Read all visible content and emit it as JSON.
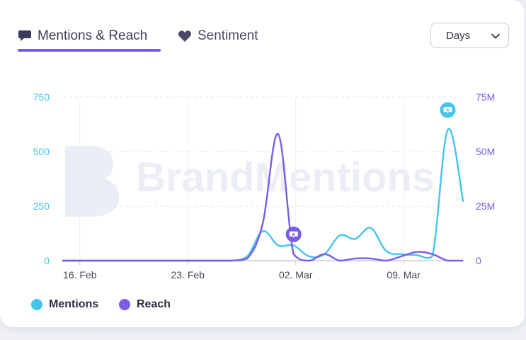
{
  "tabs": [
    {
      "label": "Mentions & Reach",
      "icon": "speech-bubble-icon",
      "active": true
    },
    {
      "label": "Sentiment",
      "icon": "heart-icon",
      "active": false
    }
  ],
  "period_select": {
    "value": "Days",
    "icon": "chevron-down-icon"
  },
  "colors": {
    "mentions": "#44c5ea",
    "reach": "#7b5ce5",
    "active_tab": "#7b5ce5"
  },
  "watermark": "BrandMentions",
  "chart_data": {
    "type": "line",
    "x": [
      "2025-02-15",
      "2025-02-16",
      "2025-02-17",
      "2025-02-18",
      "2025-02-19",
      "2025-02-20",
      "2025-02-21",
      "2025-02-22",
      "2025-02-23",
      "2025-02-24",
      "2025-02-25",
      "2025-02-26",
      "2025-02-27",
      "2025-02-28",
      "2025-03-01",
      "2025-03-02",
      "2025-03-03",
      "2025-03-04",
      "2025-03-05",
      "2025-03-06",
      "2025-03-07",
      "2025-03-08",
      "2025-03-09",
      "2025-03-10",
      "2025-03-11",
      "2025-03-12",
      "2025-03-13"
    ],
    "series": [
      {
        "name": "Mentions",
        "axis": "left",
        "values": [
          0,
          0,
          0,
          0,
          0,
          0,
          0,
          0,
          0,
          0,
          0,
          0,
          20,
          135,
          70,
          70,
          20,
          30,
          115,
          100,
          150,
          45,
          30,
          25,
          20,
          600,
          270
        ]
      },
      {
        "name": "Reach",
        "axis": "right",
        "values": [
          0,
          0,
          0,
          0,
          0,
          0,
          0,
          0,
          0,
          0,
          0,
          0,
          1,
          17,
          58,
          3,
          0,
          3,
          0,
          1,
          1,
          0,
          2,
          4,
          3,
          0,
          0
        ]
      }
    ],
    "x_tick_labels": [
      "16. Feb",
      "23. Feb",
      "02. Mar",
      "09. Mar"
    ],
    "x_tick_dates": [
      "2025-02-16",
      "2025-02-23",
      "2025-03-02",
      "2025-03-09"
    ],
    "y_left": {
      "ticks": [
        0,
        250,
        500,
        750
      ],
      "tick_labels": [
        "0",
        "250",
        "500",
        "750"
      ],
      "range": [
        0,
        750
      ]
    },
    "y_right": {
      "ticks": [
        0,
        25,
        50,
        75
      ],
      "tick_labels": [
        "0",
        "25M",
        "50M",
        "75M"
      ],
      "range": [
        0,
        75
      ]
    },
    "annotations": [
      {
        "series": "Reach",
        "x": "2025-03-02",
        "icon": "flag-marker-icon"
      },
      {
        "series": "Mentions",
        "x": "2025-03-12",
        "icon": "flag-marker-icon"
      }
    ],
    "grid": true,
    "legend_position": "bottom-left"
  }
}
